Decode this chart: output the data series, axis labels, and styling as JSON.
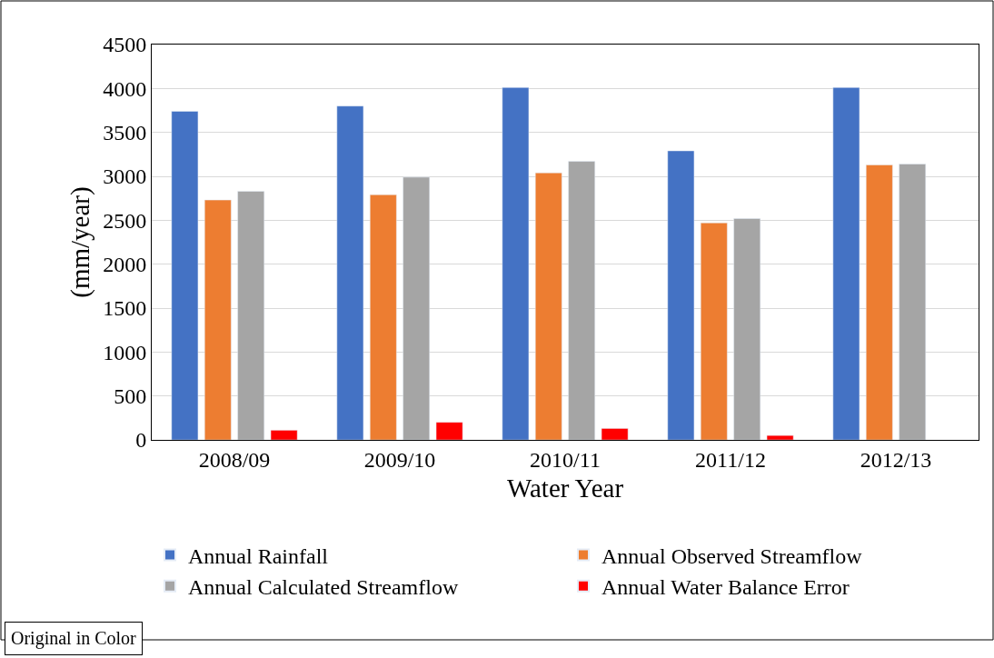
{
  "chart_data": {
    "type": "bar",
    "xlabel": "Water Year",
    "ylabel": "(mm/year)",
    "categories": [
      "2008/09",
      "2009/10",
      "2010/11",
      "2011/12",
      "2012/13"
    ],
    "series": [
      {
        "name": "Annual Rainfall",
        "color": "#4472c4",
        "values": [
          3740,
          3800,
          4010,
          3290,
          4010
        ]
      },
      {
        "name": "Annual Observed Streamflow",
        "color": "#ed7d31",
        "values": [
          2730,
          2790,
          3040,
          2470,
          3130
        ]
      },
      {
        "name": "Annual Calculated Streamflow",
        "color": "#a5a5a5",
        "values": [
          2830,
          2990,
          3170,
          2520,
          3140
        ]
      },
      {
        "name": "Annual Water Balance Error",
        "color": "#ff0000",
        "values": [
          110,
          200,
          130,
          50,
          null
        ]
      }
    ],
    "ylim": [
      0,
      4500
    ],
    "yticks": [
      0,
      500,
      1000,
      1500,
      2000,
      2500,
      3000,
      3500,
      4000,
      4500
    ],
    "grid": "y",
    "legend": "bottom",
    "annotations": [
      "Original in Color"
    ]
  }
}
